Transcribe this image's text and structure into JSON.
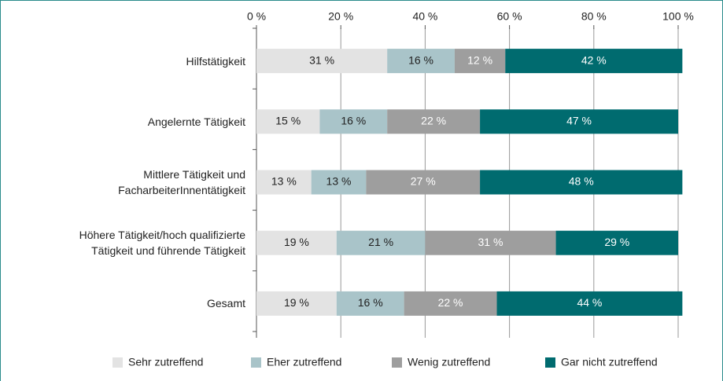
{
  "chart_data": {
    "type": "stacked-bar-horizontal",
    "categories": [
      "Hilfstätigkeit",
      "Angelernte Tätigkeit",
      "Mittlere Tätigkeit und\nFacharbeiterInnentätigkeit",
      "Höhere Tätigkeit/hoch qualifizierte\nTätigkeit und führende Tätigkeit",
      "Gesamt"
    ],
    "series": [
      {
        "name": "Sehr zutreffend",
        "color": "#e3e3e3",
        "values": [
          31,
          15,
          13,
          19,
          19
        ],
        "value_labels": [
          "31 %",
          "15 %",
          "13 %",
          "19 %",
          "19 %"
        ]
      },
      {
        "name": "Eher zutreffend",
        "color": "#a9c4c9",
        "values": [
          16,
          16,
          13,
          21,
          16
        ],
        "value_labels": [
          "16 %",
          "16 %",
          "13 %",
          "21 %",
          "16 %"
        ]
      },
      {
        "name": "Wenig zutreffend",
        "color": "#9e9e9e",
        "values": [
          12,
          22,
          27,
          31,
          22
        ],
        "value_labels": [
          "12 %",
          "22 %",
          "27 %",
          "31 %",
          "22 %"
        ]
      },
      {
        "name": "Gar nicht zutreffend",
        "color": "#006b6f",
        "values": [
          42,
          47,
          48,
          29,
          44
        ],
        "value_labels": [
          "42 %",
          "47 %",
          "48 %",
          "29 %",
          "44 %"
        ]
      }
    ],
    "xlim": [
      0,
      100
    ],
    "xticks": [
      {
        "value": 0,
        "label": "0 %"
      },
      {
        "value": 20,
        "label": "20 %"
      },
      {
        "value": 40,
        "label": "40 %"
      },
      {
        "value": 60,
        "label": "60 %"
      },
      {
        "value": 80,
        "label": "80 %"
      },
      {
        "value": 100,
        "label": "100 %"
      }
    ],
    "grid": true,
    "legend": "bottom"
  }
}
